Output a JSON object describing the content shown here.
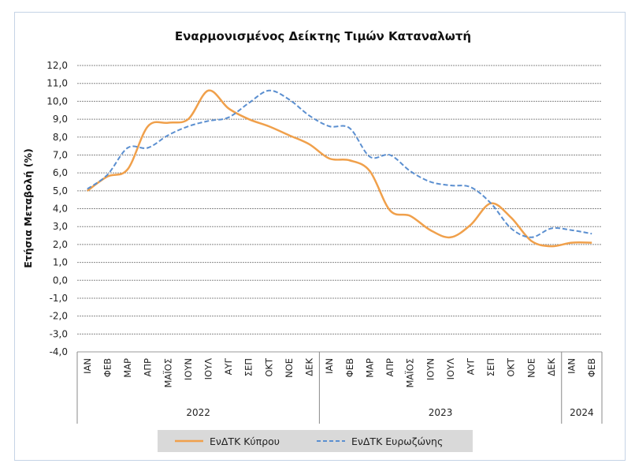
{
  "chart_data": {
    "type": "line",
    "title": "Εναρμονισμένος Δείκτης Τιμών Καταναλωτή",
    "xlabel": "",
    "ylabel": "Ετήσια Μεταβολή (%)",
    "ylim": [
      -4,
      12
    ],
    "yticks": [
      "12,0",
      "11,0",
      "10,0",
      "9,0",
      "8,0",
      "7,0",
      "6,0",
      "5,0",
      "4,0",
      "3,0",
      "2,0",
      "1,0",
      "0,0",
      "-1,0",
      "-2,0",
      "-3,0",
      "-4,0"
    ],
    "ytick_values": [
      12,
      11,
      10,
      9,
      8,
      7,
      6,
      5,
      4,
      3,
      2,
      1,
      0,
      -1,
      -2,
      -3,
      -4
    ],
    "grid": true,
    "categories": [
      "ΙΑΝ",
      "ΦΕΒ",
      "ΜΑΡ",
      "ΑΠΡ",
      "ΜΑΪΟΣ",
      "ΙΟΥΝ",
      "ΙΟΥΛ",
      "ΑΥΓ",
      "ΣΕΠ",
      "ΟΚΤ",
      "ΝΟΕ",
      "ΔΕΚ",
      "ΙΑΝ",
      "ΦΕΒ",
      "ΜΑΡ",
      "ΑΠΡ",
      "ΜΑΪΟΣ",
      "ΙΟΥΝ",
      "ΙΟΥΛ",
      "ΑΥΓ",
      "ΣΕΠ",
      "ΟΚΤ",
      "ΝΟΕ",
      "ΔΕΚ",
      "ΙΑΝ",
      "ΦΕΒ"
    ],
    "year_groups": [
      {
        "label": "2022",
        "months": 12
      },
      {
        "label": "2023",
        "months": 12
      },
      {
        "label": "2024",
        "months": 2
      }
    ],
    "series": [
      {
        "name": "ΕνΔΤΚ Κύπρου",
        "color": "#f0a04b",
        "style": "solid",
        "values": [
          5.0,
          5.8,
          6.2,
          8.6,
          8.8,
          9.0,
          10.6,
          9.6,
          9.0,
          8.6,
          8.1,
          7.6,
          6.8,
          6.7,
          6.1,
          3.9,
          3.6,
          2.8,
          2.4,
          3.1,
          4.3,
          3.5,
          2.2,
          1.9,
          2.1,
          2.1
        ]
      },
      {
        "name": "ΕνΔΤΚ Ευρωζώνης",
        "color": "#5b8fd0",
        "style": "dashed",
        "values": [
          5.1,
          5.9,
          7.4,
          7.4,
          8.1,
          8.6,
          8.9,
          9.1,
          9.9,
          10.6,
          10.1,
          9.2,
          8.6,
          8.5,
          6.9,
          7.0,
          6.1,
          5.5,
          5.3,
          5.2,
          4.3,
          2.9,
          2.4,
          2.9,
          2.8,
          2.6
        ]
      }
    ],
    "legend_position": "bottom"
  }
}
